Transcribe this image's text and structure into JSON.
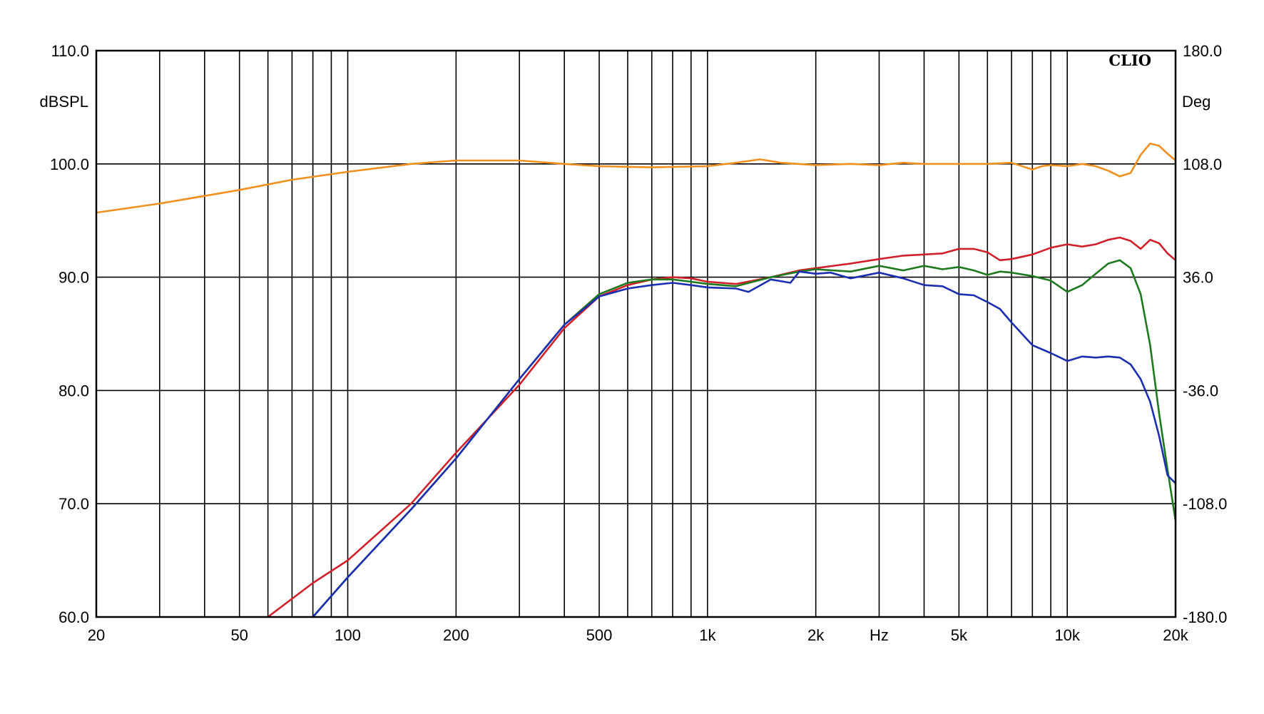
{
  "chart_data": {
    "type": "line",
    "brand": "CLIO",
    "xlabel": "Hz",
    "ylabel_left": "dBSPL",
    "ylabel_right": "Deg",
    "x_scale": "log",
    "xlim": [
      20,
      20000
    ],
    "ylim": [
      60,
      110
    ],
    "ylim_right": [
      -180,
      180
    ],
    "grid": true,
    "x_ticks": [
      {
        "value": 20,
        "label": "20"
      },
      {
        "value": 50,
        "label": "50"
      },
      {
        "value": 100,
        "label": "100"
      },
      {
        "value": 200,
        "label": "200"
      },
      {
        "value": 500,
        "label": "500"
      },
      {
        "value": 1000,
        "label": "1k"
      },
      {
        "value": 2000,
        "label": "2k"
      },
      {
        "value": 3000,
        "label": "Hz"
      },
      {
        "value": 5000,
        "label": "5k"
      },
      {
        "value": 10000,
        "label": "10k"
      },
      {
        "value": 20000,
        "label": "20k"
      }
    ],
    "y_ticks_left": [
      "60.0",
      "70.0",
      "80.0",
      "90.0",
      "100.0",
      "110.0"
    ],
    "y_ticks_right": [
      "-180.0",
      "-108.0",
      "-36.0",
      "36.0",
      "108.0",
      "180.0"
    ],
    "series": [
      {
        "color": "#f0901e",
        "x": [
          20,
          30,
          50,
          70,
          100,
          150,
          200,
          300,
          400,
          500,
          700,
          1000,
          1200,
          1400,
          1600,
          2000,
          2500,
          3000,
          3500,
          4000,
          5000,
          6000,
          7000,
          8000,
          8500,
          9000,
          10000,
          11000,
          12000,
          13000,
          14000,
          15000,
          16000,
          17000,
          18000,
          19000,
          20000
        ],
        "y": [
          95.7,
          96.5,
          97.7,
          98.6,
          99.3,
          100.0,
          100.3,
          100.3,
          100.0,
          99.8,
          99.7,
          99.8,
          100.1,
          100.4,
          100.1,
          99.9,
          100.0,
          99.9,
          100.1,
          100.0,
          100.0,
          100.0,
          100.1,
          99.5,
          99.8,
          99.9,
          99.8,
          100.0,
          99.8,
          99.4,
          98.9,
          99.2,
          100.8,
          101.8,
          101.6,
          100.9,
          100.3
        ]
      },
      {
        "color": "#d0202a",
        "x": [
          60,
          80,
          100,
          150,
          200,
          300,
          400,
          500,
          600,
          700,
          800,
          900,
          1000,
          1200,
          1500,
          1800,
          2000,
          2500,
          3000,
          3500,
          4000,
          4500,
          5000,
          5500,
          6000,
          6500,
          7000,
          8000,
          9000,
          10000,
          11000,
          12000,
          13000,
          14000,
          15000,
          16000,
          17000,
          18000,
          19000,
          20000
        ],
        "y": [
          60.0,
          63.0,
          65.0,
          70.0,
          74.5,
          80.5,
          85.5,
          88.3,
          89.3,
          89.8,
          90.0,
          89.9,
          89.6,
          89.4,
          90.0,
          90.6,
          90.8,
          91.2,
          91.6,
          91.9,
          92.0,
          92.1,
          92.5,
          92.5,
          92.2,
          91.5,
          91.6,
          92.0,
          92.6,
          92.9,
          92.7,
          92.9,
          93.3,
          93.5,
          93.2,
          92.5,
          93.3,
          93.0,
          92.1,
          91.5
        ]
      },
      {
        "color": "#1e7a1e",
        "x": [
          80,
          100,
          150,
          200,
          300,
          400,
          500,
          600,
          700,
          800,
          900,
          1000,
          1200,
          1500,
          1800,
          2000,
          2500,
          3000,
          3500,
          4000,
          4500,
          5000,
          5500,
          6000,
          6500,
          7000,
          8000,
          9000,
          10000,
          11000,
          12000,
          13000,
          14000,
          15000,
          16000,
          17000,
          18000,
          19000,
          20000
        ],
        "y": [
          60.0,
          63.5,
          69.5,
          74.0,
          81.0,
          85.8,
          88.5,
          89.5,
          89.8,
          89.8,
          89.6,
          89.4,
          89.2,
          90.0,
          90.5,
          90.7,
          90.5,
          91.0,
          90.6,
          91.0,
          90.7,
          90.9,
          90.6,
          90.2,
          90.5,
          90.4,
          90.1,
          89.7,
          88.7,
          89.3,
          90.3,
          91.2,
          91.5,
          90.8,
          88.5,
          84.0,
          78.0,
          73.0,
          68.5
        ]
      },
      {
        "color": "#1b2fb0",
        "x": [
          80,
          100,
          150,
          200,
          300,
          400,
          500,
          600,
          700,
          800,
          900,
          1000,
          1200,
          1300,
          1500,
          1700,
          1800,
          2000,
          2200,
          2500,
          3000,
          3500,
          4000,
          4500,
          5000,
          5500,
          6000,
          6500,
          7000,
          8000,
          9000,
          10000,
          11000,
          12000,
          13000,
          14000,
          15000,
          16000,
          17000,
          18000,
          19000,
          20000
        ],
        "y": [
          60.0,
          63.5,
          69.5,
          74.0,
          81.0,
          85.8,
          88.3,
          89.0,
          89.3,
          89.5,
          89.3,
          89.1,
          89.0,
          88.7,
          89.8,
          89.5,
          90.5,
          90.3,
          90.4,
          89.9,
          90.4,
          89.9,
          89.3,
          89.2,
          88.5,
          88.4,
          87.8,
          87.2,
          86.0,
          84.0,
          83.3,
          82.6,
          83.0,
          82.9,
          83.0,
          82.9,
          82.3,
          81.0,
          79.0,
          76.0,
          72.5,
          71.8
        ]
      }
    ]
  }
}
